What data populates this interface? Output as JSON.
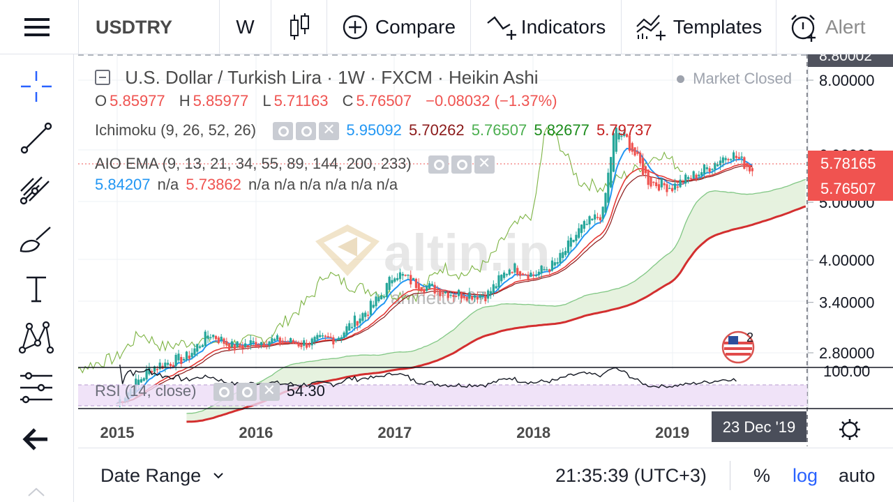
{
  "toolbar": {
    "symbol": "USDTRY",
    "interval": "W",
    "compare": "Compare",
    "indicators": "Indicators",
    "templates": "Templates",
    "alert": "Alert"
  },
  "legend": {
    "title": "U.S. Dollar / Turkish Lira · 1W · FXCM · Heikin Ashi",
    "market_status": "Market Closed",
    "ohlc": [
      {
        "k": "O",
        "v": "5.85977"
      },
      {
        "k": "H",
        "v": "5.85977"
      },
      {
        "k": "L",
        "v": "5.71163"
      },
      {
        "k": "C",
        "v": "5.76507"
      }
    ],
    "change": "−0.08032 (−1.37%)",
    "ichimoku": {
      "name": "Ichimoku (9, 26, 52, 26)",
      "values": [
        "5.95092",
        "5.70262",
        "5.76507",
        "5.82677",
        "5.79737"
      ]
    },
    "ema": {
      "name": "AIO EMA (9, 13, 21, 34, 55, 89, 144, 200, 233)",
      "values": [
        "5.84207",
        "n/a",
        "5.73862",
        "n/a n/a n/a n/a n/a n/a"
      ]
    },
    "rsi": {
      "name": "RSI (14, close)",
      "value": "54.30"
    }
  },
  "price_axis": {
    "ticks": [
      "8.00000",
      "6.00000",
      "5.00000",
      "4.00000",
      "3.40000",
      "2.80000"
    ],
    "top_clipped": "8.80002",
    "rsi_top": "100.00",
    "badge_ema": "5.78165",
    "badge_close": "5.76507"
  },
  "time_axis": {
    "ticks": [
      "2015",
      "2016",
      "2017",
      "2018",
      "2019"
    ],
    "cursor_label": "23 Dec '19"
  },
  "watermark": {
    "brand": "altin.in",
    "user": "ahmett0707"
  },
  "event_badge": "2",
  "bottom": {
    "date_range": "Date Range",
    "clock": "21:35:39 (UTC+3)",
    "percent": "%",
    "log": "log",
    "auto": "auto"
  },
  "colors": {
    "up": "#26a69a",
    "down": "#ef5350",
    "ema_fast": "#2196f3",
    "ema_mid": "#e53935",
    "kijun": "#8b1a1a",
    "chikou": "#7cb342",
    "cloud": "#e3f1dc",
    "rsi_band": "#ecdcf6",
    "log_blue": "#2962ff"
  },
  "chart_data": {
    "type": "candlestick",
    "title": "U.S. Dollar / Turkish Lira · 1W · FXCM · Heikin Ashi",
    "scale": "log",
    "ylim": [
      2.6,
      8.8
    ],
    "x_ticks": [
      "2015",
      "2016",
      "2017",
      "2018",
      "2019"
    ],
    "y_ticks": [
      8.0,
      6.0,
      5.0,
      4.0,
      3.4,
      2.8
    ],
    "price_path": [
      [
        "2015-01",
        2.31
      ],
      [
        "2015-04",
        2.65
      ],
      [
        "2015-07",
        2.75
      ],
      [
        "2015-09",
        3.02
      ],
      [
        "2015-11",
        2.86
      ],
      [
        "2016-02",
        2.94
      ],
      [
        "2016-05",
        2.9
      ],
      [
        "2016-08",
        2.97
      ],
      [
        "2016-11",
        3.35
      ],
      [
        "2016-12",
        3.52
      ],
      [
        "2017-01",
        3.82
      ],
      [
        "2017-03",
        3.64
      ],
      [
        "2017-06",
        3.52
      ],
      [
        "2017-09",
        3.5
      ],
      [
        "2017-11",
        3.9
      ],
      [
        "2018-01",
        3.78
      ],
      [
        "2018-03",
        3.95
      ],
      [
        "2018-05",
        4.5
      ],
      [
        "2018-07",
        4.8
      ],
      [
        "2018-08",
        6.6
      ],
      [
        "2018-09",
        6.4
      ],
      [
        "2018-11",
        5.4
      ],
      [
        "2019-01",
        5.3
      ],
      [
        "2019-04",
        5.7
      ],
      [
        "2019-06",
        6.05
      ],
      [
        "2019-08",
        5.65
      ]
    ],
    "last": {
      "open": 5.85977,
      "high": 5.85977,
      "low": 5.71163,
      "close": 5.76507,
      "change": -0.08032,
      "change_pct": -1.37
    },
    "rsi": {
      "period": 14,
      "last": 54.3,
      "range": [
        0,
        100
      ]
    }
  }
}
